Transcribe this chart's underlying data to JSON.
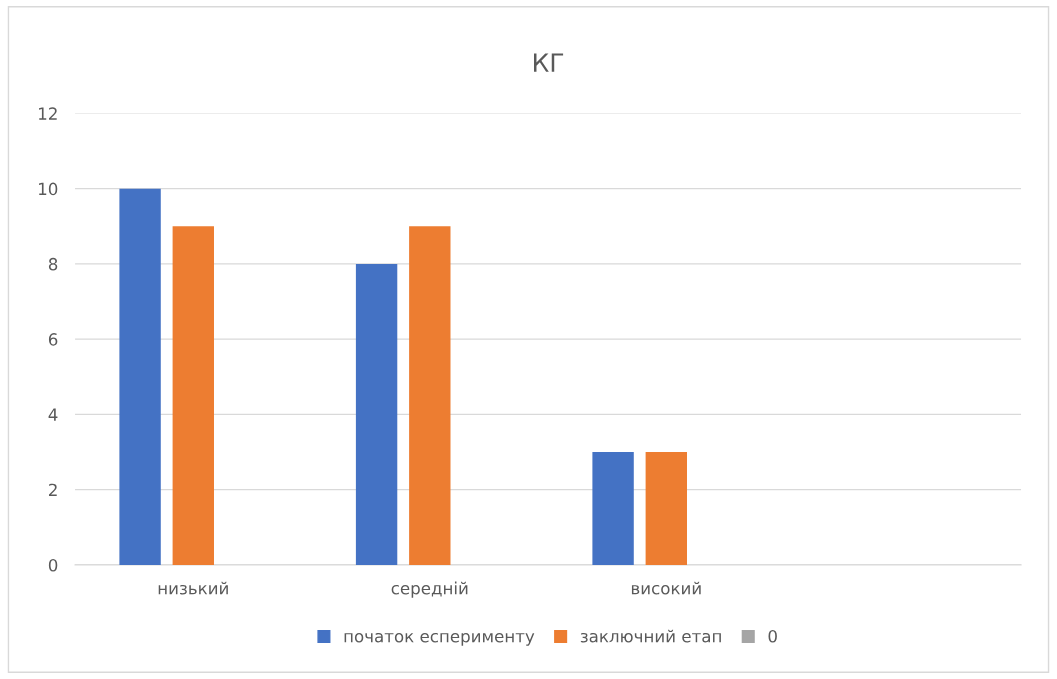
{
  "chart_data": {
    "type": "bar",
    "title": "КГ",
    "categories": [
      "низький",
      "середній",
      "високий",
      null
    ],
    "series": [
      {
        "name": "початок есперименту",
        "color": "#4472c4",
        "values": [
          10,
          8,
          3,
          null
        ]
      },
      {
        "name": "заключний етап",
        "color": "#ed7d31",
        "values": [
          9,
          9,
          3,
          null
        ]
      },
      {
        "name": "0",
        "color": "#a5a5a5",
        "values": [
          null,
          null,
          null,
          null
        ]
      }
    ],
    "ylim": [
      0,
      12
    ],
    "yticks": [
      0,
      2,
      4,
      6,
      8,
      10,
      12
    ],
    "grid": "y",
    "legend": "bottom"
  }
}
